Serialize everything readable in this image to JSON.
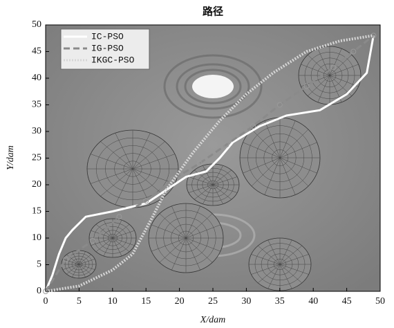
{
  "chart_data": {
    "type": "line",
    "title": "路径",
    "x_label": "X/dam",
    "y_label": "Y/dam",
    "xlim": [
      0,
      50
    ],
    "ylim": [
      0,
      50
    ],
    "xticks": [
      0,
      5,
      10,
      15,
      20,
      25,
      30,
      35,
      40,
      45,
      50
    ],
    "yticks": [
      0,
      5,
      10,
      15,
      20,
      25,
      30,
      35,
      40,
      45,
      50
    ],
    "legend": "upper left",
    "series": [
      {
        "name": "IC-PSO",
        "color": "#ffffff",
        "style": "solid",
        "x": [
          0,
          1,
          1.5,
          2,
          3,
          4,
          6,
          10,
          15,
          18,
          21,
          24,
          26,
          28,
          32,
          36,
          41,
          45,
          48,
          49
        ],
        "y": [
          0,
          3,
          5,
          7,
          10,
          11.5,
          14,
          15,
          16.5,
          19,
          21.5,
          22.5,
          25,
          28,
          31,
          33,
          34,
          37,
          41,
          48
        ]
      },
      {
        "name": "IG-PSO",
        "color": "#8a8a8a",
        "style": "dashed",
        "x": [
          0,
          3,
          7,
          11,
          15,
          19,
          23,
          27,
          31,
          35,
          39,
          43,
          46,
          49
        ],
        "y": [
          0,
          6,
          9.5,
          14,
          17,
          21,
          24,
          27.5,
          31,
          35,
          38.5,
          42,
          45,
          48
        ]
      },
      {
        "name": "IKGC-PSO",
        "color": "#d6d6d6",
        "style": "dotted",
        "x": [
          0,
          5,
          10,
          13,
          16,
          18,
          22,
          26,
          30,
          34,
          39,
          44,
          49
        ],
        "y": [
          0,
          1,
          4,
          7,
          14,
          19,
          26,
          32,
          37,
          41,
          45,
          47,
          48
        ]
      }
    ]
  }
}
